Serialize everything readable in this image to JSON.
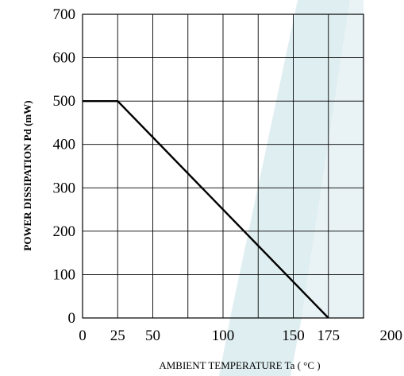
{
  "chart_data": {
    "type": "line",
    "title": "",
    "xlabel": "AMBIENT TEMPERATURE    Ta ( °C )",
    "ylabel": "POWER DISSIPATION    Pd (mW)",
    "xlim": [
      0,
      200
    ],
    "ylim": [
      0,
      700
    ],
    "x_ticks": [
      0,
      25,
      50,
      100,
      150,
      175,
      200
    ],
    "y_ticks": [
      0,
      100,
      200,
      300,
      400,
      500,
      600,
      700
    ],
    "grid": true,
    "series": [
      {
        "x": [
          0,
          25,
          175
        ],
        "y": [
          500,
          500,
          0
        ]
      }
    ]
  },
  "colors": {
    "grid": "#000000",
    "line": "#000000",
    "watermark": "#dfeef1"
  }
}
